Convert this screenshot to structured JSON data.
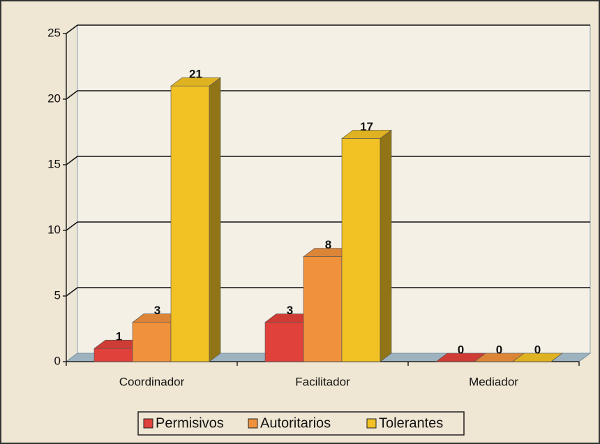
{
  "chart_data": {
    "type": "bar3d",
    "categories": [
      "Coordinador",
      "Facilitador",
      "Mediador"
    ],
    "series": [
      {
        "name": "Permisivos",
        "color": "#e0413a",
        "values": [
          1,
          3,
          0
        ]
      },
      {
        "name": "Autoritarios",
        "color": "#f0913c",
        "values": [
          3,
          8,
          0
        ]
      },
      {
        "name": "Tolerantes",
        "color": "#f2c124",
        "values": [
          21,
          17,
          0
        ]
      }
    ],
    "ylim": [
      0,
      25
    ],
    "yticks": [
      0,
      5,
      10,
      15,
      20,
      25
    ],
    "grid": true,
    "legend": "bottom"
  }
}
